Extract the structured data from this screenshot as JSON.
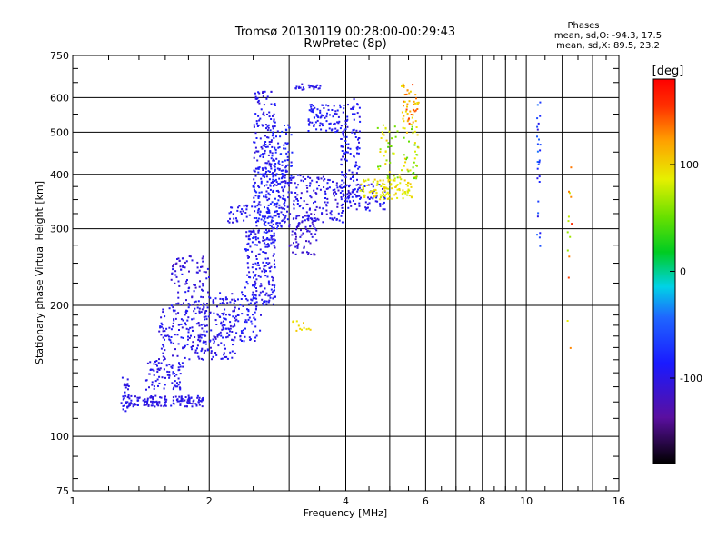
{
  "chart_data": {
    "type": "scatter",
    "title": "Tromsø 20130119 00:28:00-00:29:43",
    "subtitle": "RwPretec (8p)",
    "stats": {
      "heading": "Phases",
      "line_o": "mean, sd,O: -94.3, 17.5",
      "line_x": "mean, sd,X:  89.5, 23.2"
    },
    "xlabel": "Frequency [MHz]",
    "ylabel": "Stationary phase Virtual Height [km]",
    "xscale": "log",
    "yscale": "log",
    "xlim": [
      1,
      16
    ],
    "ylim": [
      75,
      750
    ],
    "xticks": [
      1,
      2,
      4,
      6,
      8,
      10,
      16
    ],
    "xtick_labels": [
      "1",
      "2",
      "4",
      "6",
      "8",
      "10",
      "16"
    ],
    "yticks": [
      75,
      100,
      200,
      300,
      400,
      500,
      600,
      750
    ],
    "ytick_labels": [
      "75",
      "100",
      "200",
      "300",
      "400",
      "500",
      "600",
      "750"
    ],
    "grid": true,
    "colorbar": {
      "label": "[deg]",
      "range": [
        -180,
        180
      ],
      "ticks": [
        -100,
        0,
        100
      ],
      "tick_labels": [
        "-100",
        "0",
        "100"
      ]
    },
    "point_clusters": [
      {
        "f": [
          1.28,
          1.33
        ],
        "h": [
          112,
          140
        ],
        "phase": [
          -105,
          -90
        ],
        "n": 30
      },
      {
        "f": [
          1.33,
          1.95
        ],
        "h": [
          117,
          124
        ],
        "phase": [
          -110,
          -90
        ],
        "n": 140
      },
      {
        "f": [
          1.45,
          1.75
        ],
        "h": [
          128,
          150
        ],
        "phase": [
          -105,
          -90
        ],
        "n": 80
      },
      {
        "f": [
          1.55,
          2.0
        ],
        "h": [
          150,
          200
        ],
        "phase": [
          -110,
          -85
        ],
        "n": 140
      },
      {
        "f": [
          1.65,
          2.0
        ],
        "h": [
          200,
          260
        ],
        "phase": [
          -120,
          -90
        ],
        "n": 90
      },
      {
        "f": [
          1.9,
          2.3
        ],
        "h": [
          150,
          210
        ],
        "phase": [
          -110,
          -85
        ],
        "n": 120
      },
      {
        "f": [
          2.1,
          2.6
        ],
        "h": [
          165,
          215
        ],
        "phase": [
          -105,
          -80
        ],
        "n": 100
      },
      {
        "f": [
          2.2,
          2.5
        ],
        "h": [
          310,
          340
        ],
        "phase": [
          -105,
          -90
        ],
        "n": 30
      },
      {
        "f": [
          2.4,
          2.8
        ],
        "h": [
          200,
          300
        ],
        "phase": [
          -110,
          -80
        ],
        "n": 200
      },
      {
        "f": [
          2.5,
          2.95
        ],
        "h": [
          300,
          420
        ],
        "phase": [
          -105,
          -75
        ],
        "n": 200
      },
      {
        "f": [
          2.5,
          2.8
        ],
        "h": [
          420,
          620
        ],
        "phase": [
          -110,
          -85
        ],
        "n": 110
      },
      {
        "f": [
          2.75,
          3.05
        ],
        "h": [
          380,
          520
        ],
        "phase": [
          -100,
          -70
        ],
        "n": 80
      },
      {
        "f": [
          3.0,
          3.45
        ],
        "h": [
          260,
          330
        ],
        "phase": [
          -120,
          -100
        ],
        "n": 70
      },
      {
        "f": [
          2.9,
          4.0
        ],
        "h": [
          310,
          400
        ],
        "phase": [
          -115,
          -85
        ],
        "n": 180
      },
      {
        "f": [
          3.3,
          3.9
        ],
        "h": [
          500,
          580
        ],
        "phase": [
          -105,
          -80
        ],
        "n": 80
      },
      {
        "f": [
          3.1,
          3.6
        ],
        "h": [
          625,
          645
        ],
        "phase": [
          -110,
          -90
        ],
        "n": 25
      },
      {
        "f": [
          3.9,
          4.3
        ],
        "h": [
          350,
          600
        ],
        "phase": [
          -105,
          -80
        ],
        "n": 110
      },
      {
        "f": [
          4.0,
          4.9
        ],
        "h": [
          330,
          380
        ],
        "phase": [
          -110,
          -80
        ],
        "n": 80
      },
      {
        "f": [
          4.3,
          5.6
        ],
        "h": [
          350,
          390
        ],
        "phase": [
          75,
          105
        ],
        "n": 110
      },
      {
        "f": [
          4.7,
          5.8
        ],
        "h": [
          390,
          520
        ],
        "phase": [
          40,
          110
        ],
        "n": 80
      },
      {
        "f": [
          5.3,
          5.8
        ],
        "h": [
          520,
          650
        ],
        "phase": [
          90,
          150
        ],
        "n": 50
      },
      {
        "f": [
          3.05,
          3.35
        ],
        "h": [
          170,
          185
        ],
        "phase": [
          85,
          105
        ],
        "n": 12
      },
      {
        "f": [
          10.55,
          10.75
        ],
        "h": [
          270,
          600
        ],
        "phase": [
          -110,
          -30
        ],
        "n": 28
      },
      {
        "f": [
          12.3,
          12.6
        ],
        "h": [
          140,
          420
        ],
        "phase": [
          60,
          160
        ],
        "n": 14
      }
    ]
  }
}
